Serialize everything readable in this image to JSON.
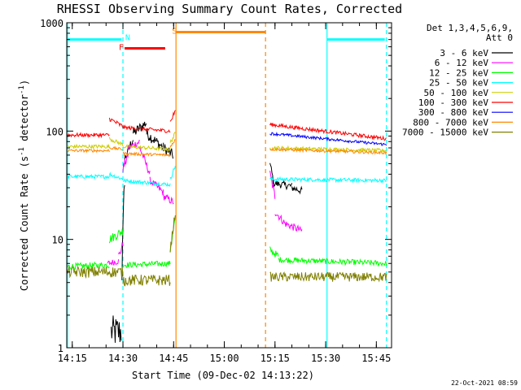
{
  "chart_data": {
    "type": "line",
    "title": "RHESSI Observing Summary Count Rates, Corrected",
    "xlabel": "Start Time (09-Dec-02 14:13:22)",
    "ylabel_main": "Corrected Count Rate (s",
    "ylabel_sup": "-1",
    "ylabel_mid": " detector",
    "ylabel_end": ")",
    "yscale": "log",
    "ylim": [
      1,
      1000
    ],
    "xlim_minutes": [
      853.37,
      949.5
    ],
    "x_ticks": [
      {
        "label": "14:15",
        "minute": 855
      },
      {
        "label": "14:30",
        "minute": 870
      },
      {
        "label": "14:45",
        "minute": 885
      },
      {
        "label": "15:00",
        "minute": 900
      },
      {
        "label": "15:15",
        "minute": 915
      },
      {
        "label": "15:30",
        "minute": 930
      },
      {
        "label": "15:45",
        "minute": 945
      }
    ],
    "y_ticks": [
      {
        "label": "1",
        "value": 1
      },
      {
        "label": "10",
        "value": 10
      },
      {
        "label": "100",
        "value": 100
      },
      {
        "label": "1000",
        "value": 1000
      }
    ],
    "legend_header": [
      "Det 1,3,4,5,6,9,",
      "Att 0"
    ],
    "series": [
      {
        "name": "3 - 6 keV",
        "color": "#000000",
        "segments": [
          {
            "t0": 866.5,
            "t1": 869.5,
            "y0": 1.4,
            "y1": 1.4,
            "noise": 0.35,
            "floor": 1
          },
          {
            "t0": 869.7,
            "t1": 870.5,
            "y0": 5,
            "y1": 40,
            "noise": 0.3
          },
          {
            "t0": 870.5,
            "t1": 873,
            "y0": 55,
            "y1": 85,
            "noise": 0.12
          },
          {
            "t0": 873,
            "t1": 877,
            "y0": 95,
            "y1": 120,
            "noise": 0.12
          },
          {
            "t0": 877,
            "t1": 882,
            "y0": 95,
            "y1": 70,
            "noise": 0.12
          },
          {
            "t0": 882,
            "t1": 884.8,
            "y0": 70,
            "y1": 60,
            "noise": 0.12
          },
          {
            "t0": 913.5,
            "t1": 914.5,
            "y0": 50,
            "y1": 35,
            "noise": 0.1
          },
          {
            "t0": 914.5,
            "t1": 920,
            "y0": 33,
            "y1": 31,
            "noise": 0.08
          },
          {
            "t0": 920,
            "t1": 923,
            "y0": 30,
            "y1": 28,
            "noise": 0.08
          }
        ]
      },
      {
        "name": "6 - 12 keV",
        "color": "#ff00ff",
        "segments": [
          {
            "t0": 865.5,
            "t1": 868.7,
            "y0": 6,
            "y1": 6.3,
            "noise": 0.07
          },
          {
            "t0": 868.7,
            "t1": 870,
            "y0": 7,
            "y1": 9,
            "noise": 0.1
          },
          {
            "t0": 870,
            "t1": 871.5,
            "y0": 45,
            "y1": 60,
            "noise": 0.1
          },
          {
            "t0": 871.5,
            "t1": 875,
            "y0": 70,
            "y1": 80,
            "noise": 0.08
          },
          {
            "t0": 875,
            "t1": 878,
            "y0": 70,
            "y1": 40,
            "noise": 0.08
          },
          {
            "t0": 878,
            "t1": 882,
            "y0": 35,
            "y1": 27,
            "noise": 0.08
          },
          {
            "t0": 882,
            "t1": 885,
            "y0": 25,
            "y1": 22,
            "noise": 0.08
          },
          {
            "t0": 913.5,
            "t1": 915,
            "y0": 40,
            "y1": 25,
            "noise": 0.1
          },
          {
            "t0": 915,
            "t1": 918,
            "y0": 18,
            "y1": 14,
            "noise": 0.08
          },
          {
            "t0": 918,
            "t1": 923,
            "y0": 14,
            "y1": 12,
            "noise": 0.08
          }
        ]
      },
      {
        "name": "12 - 25 keV",
        "color": "#00ff00",
        "segments": [
          {
            "t0": 853.5,
            "t1": 866,
            "y0": 5.6,
            "y1": 5.8,
            "noise": 0.07
          },
          {
            "t0": 866,
            "t1": 870,
            "y0": 10,
            "y1": 12,
            "noise": 0.1
          },
          {
            "t0": 870,
            "t1": 884,
            "y0": 5.8,
            "y1": 6,
            "noise": 0.06
          },
          {
            "t0": 884,
            "t1": 885.5,
            "y0": 8,
            "y1": 16,
            "noise": 0.08
          },
          {
            "t0": 913.5,
            "t1": 916,
            "y0": 8,
            "y1": 7,
            "noise": 0.08
          },
          {
            "t0": 916,
            "t1": 948,
            "y0": 6.5,
            "y1": 6,
            "noise": 0.06
          }
        ]
      },
      {
        "name": "25 - 50 keV",
        "color": "#00ffff",
        "segments": [
          {
            "t0": 853.5,
            "t1": 866,
            "y0": 38,
            "y1": 38,
            "noise": 0.04
          },
          {
            "t0": 866,
            "t1": 870,
            "y0": 40,
            "y1": 36,
            "noise": 0.04
          },
          {
            "t0": 870,
            "t1": 884,
            "y0": 35,
            "y1": 32,
            "noise": 0.04
          },
          {
            "t0": 884,
            "t1": 885.5,
            "y0": 36,
            "y1": 48,
            "noise": 0.05
          },
          {
            "t0": 913.5,
            "t1": 948,
            "y0": 36,
            "y1": 35,
            "noise": 0.04
          }
        ]
      },
      {
        "name": "50 - 100 keV",
        "color": "#cccc00",
        "segments": [
          {
            "t0": 853.5,
            "t1": 866,
            "y0": 72,
            "y1": 72,
            "noise": 0.04
          },
          {
            "t0": 866,
            "t1": 870,
            "y0": 85,
            "y1": 75,
            "noise": 0.04
          },
          {
            "t0": 870,
            "t1": 884,
            "y0": 72,
            "y1": 68,
            "noise": 0.04
          },
          {
            "t0": 884,
            "t1": 885.5,
            "y0": 78,
            "y1": 95,
            "noise": 0.05
          },
          {
            "t0": 913.5,
            "t1": 948,
            "y0": 70,
            "y1": 66,
            "noise": 0.04
          }
        ]
      },
      {
        "name": "100 - 300 keV",
        "color": "#ff0000",
        "segments": [
          {
            "t0": 853.5,
            "t1": 866,
            "y0": 92,
            "y1": 92,
            "noise": 0.04
          },
          {
            "t0": 866,
            "t1": 870,
            "y0": 130,
            "y1": 110,
            "noise": 0.05
          },
          {
            "t0": 870,
            "t1": 884,
            "y0": 108,
            "y1": 100,
            "noise": 0.04
          },
          {
            "t0": 884,
            "t1": 885.5,
            "y0": 120,
            "y1": 155,
            "noise": 0.05
          },
          {
            "t0": 913.5,
            "t1": 948,
            "y0": 115,
            "y1": 85,
            "noise": 0.04
          }
        ]
      },
      {
        "name": "300 - 800 keV",
        "color": "#0000ff",
        "segments": [
          {
            "t0": 913.5,
            "t1": 948,
            "y0": 95,
            "y1": 75,
            "noise": 0.03
          }
        ]
      },
      {
        "name": "800 - 7000 keV",
        "color": "#ff8800",
        "segments": [
          {
            "t0": 853.5,
            "t1": 866,
            "y0": 66,
            "y1": 66,
            "noise": 0.03
          },
          {
            "t0": 866,
            "t1": 870,
            "y0": 70,
            "y1": 68,
            "noise": 0.03
          },
          {
            "t0": 870,
            "t1": 884,
            "y0": 62,
            "y1": 60,
            "noise": 0.03
          },
          {
            "t0": 884,
            "t1": 885.5,
            "y0": 70,
            "y1": 85,
            "noise": 0.04
          },
          {
            "t0": 913.5,
            "t1": 948,
            "y0": 68,
            "y1": 63,
            "noise": 0.03
          }
        ]
      },
      {
        "name": "7000 - 15000 keV",
        "color": "#808000",
        "segments": [
          {
            "t0": 853.5,
            "t1": 870,
            "y0": 5,
            "y1": 5,
            "noise": 0.12
          },
          {
            "t0": 870,
            "t1": 884,
            "y0": 4.2,
            "y1": 4.2,
            "noise": 0.12
          },
          {
            "t0": 884,
            "t1": 885.5,
            "y0": 8,
            "y1": 18,
            "noise": 0.1
          },
          {
            "t0": 913.5,
            "t1": 948,
            "y0": 4.5,
            "y1": 4.5,
            "noise": 0.1
          }
        ]
      }
    ],
    "state_bars": [
      {
        "name": "night-bar",
        "color": "#00ffff",
        "t0": 853.5,
        "t1": 869.6,
        "y": 700
      },
      {
        "name": "night-bar-2",
        "color": "#00ffff",
        "t0": 930.5,
        "t1": 947.5,
        "y": 700
      },
      {
        "name": "flare-bar",
        "color": "#ff0000",
        "t0": 870.5,
        "t1": 882.5,
        "y": 580
      },
      {
        "name": "saa-bar",
        "color": "#ff8800",
        "t0": 885.7,
        "t1": 912.2,
        "y": 820
      }
    ],
    "state_labels": [
      {
        "name": "N",
        "color": "#00ffff",
        "t": 870.7,
        "y": 690
      },
      {
        "name": "F",
        "color": "#ff0000",
        "t": 868.8,
        "y": 560
      },
      {
        "name": "S",
        "color": "#ff8800",
        "t": 884.5,
        "y": 790
      }
    ],
    "vlines": [
      {
        "t": 853.6,
        "color": "#00ffff",
        "style": "solid"
      },
      {
        "t": 870.0,
        "color": "#00ffff",
        "style": "dashed"
      },
      {
        "t": 885.7,
        "color": "#ff8800",
        "style": "solid"
      },
      {
        "t": 912.2,
        "color": "#ff8800",
        "style": "dashed"
      },
      {
        "t": 930.4,
        "color": "#00ffff",
        "style": "solid"
      },
      {
        "t": 948.0,
        "color": "#00ffff",
        "style": "dashed"
      }
    ],
    "footer_date": "22-Oct-2021 08:59"
  }
}
